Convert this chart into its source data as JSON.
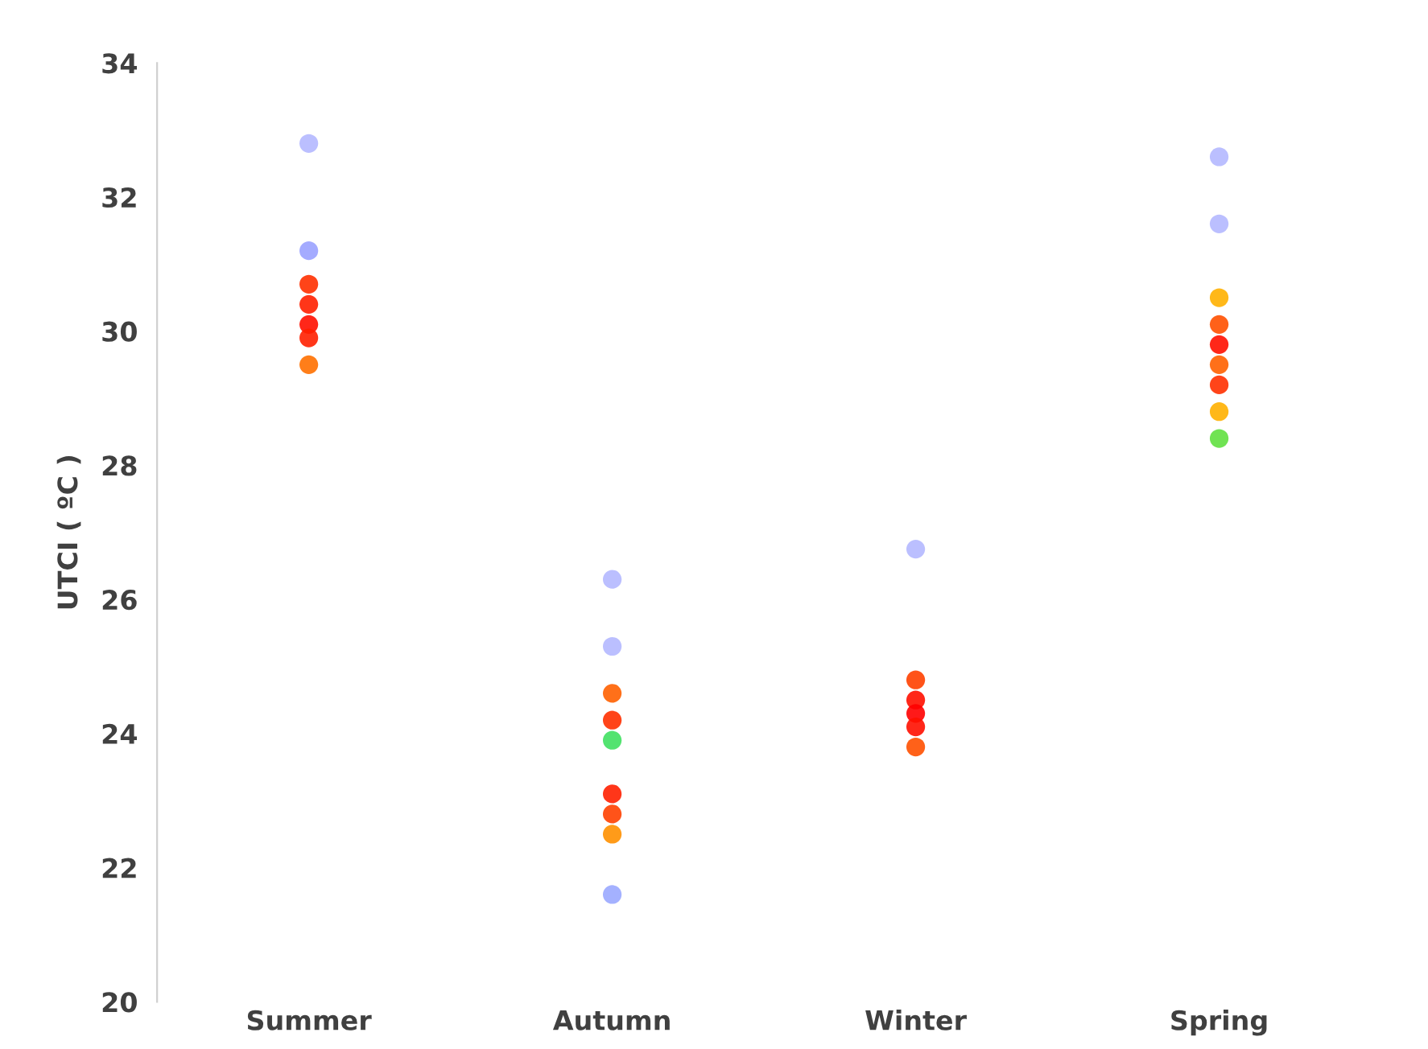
{
  "chart_data": {
    "type": "scatter",
    "ylabel": "UTCI ( ºC )",
    "categories": [
      "Summer",
      "Autumn",
      "Winter",
      "Spring"
    ],
    "ylim": [
      20,
      34
    ],
    "yticks": [
      20,
      22,
      24,
      26,
      28,
      30,
      32,
      34
    ],
    "grid": false,
    "legend": false,
    "marker": "circle",
    "series": [
      {
        "x": [
          "Summer",
          "Summer",
          "Summer",
          "Summer",
          "Summer",
          "Summer",
          "Summer",
          "Autumn",
          "Autumn",
          "Autumn",
          "Autumn",
          "Autumn",
          "Autumn",
          "Autumn",
          "Autumn",
          "Autumn",
          "Winter",
          "Winter",
          "Winter",
          "Winter",
          "Winter",
          "Winter",
          "Spring",
          "Spring",
          "Spring",
          "Spring",
          "Spring",
          "Spring",
          "Spring",
          "Spring",
          "Spring"
        ],
        "values": [
          32.8,
          31.2,
          30.7,
          30.4,
          30.1,
          29.9,
          29.5,
          26.3,
          25.3,
          24.6,
          24.2,
          23.9,
          23.1,
          22.8,
          22.5,
          21.6,
          26.75,
          24.8,
          24.5,
          24.3,
          24.1,
          23.8,
          32.6,
          31.6,
          30.5,
          30.1,
          29.8,
          29.5,
          29.2,
          28.8,
          28.4
        ],
        "colors": [
          "#b4b8ff",
          "#9aa2ff",
          "#ff3000",
          "#ff2000",
          "#ff1000",
          "#ff2000",
          "#ff7000",
          "#b4b8ff",
          "#b4b8ff",
          "#ff6000",
          "#ff3000",
          "#40e060",
          "#ff2000",
          "#ff4000",
          "#ff9000",
          "#9aa8ff",
          "#b4b8ff",
          "#ff4000",
          "#ff1000",
          "#ff0000",
          "#ff1000",
          "#ff5000",
          "#b4b8ff",
          "#b4b8ff",
          "#ffb000",
          "#ff5000",
          "#ff1000",
          "#ff6000",
          "#ff3000",
          "#ffb000",
          "#60e040"
        ]
      }
    ]
  }
}
